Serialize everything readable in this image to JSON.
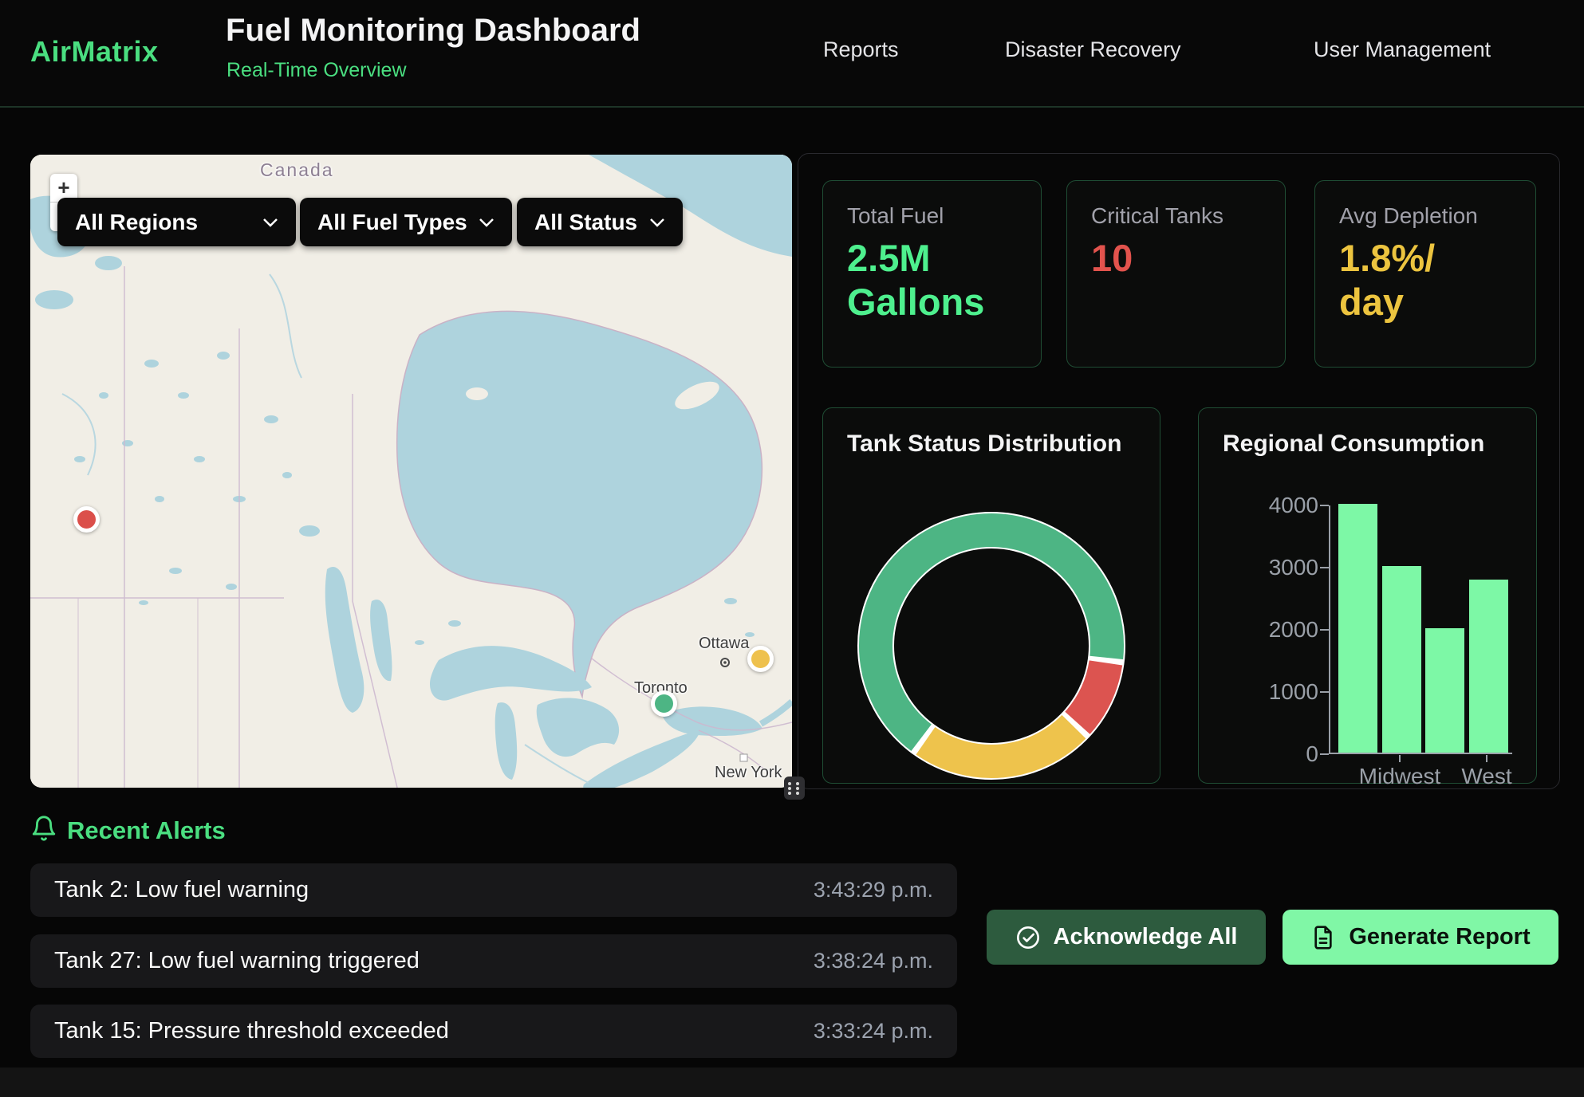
{
  "theme": {
    "accent_green": "#4ade80",
    "value_green": "#4ef08e",
    "alert_red": "#e2534d",
    "warn_yellow": "#ecc43f",
    "bar_green": "#7df8a6",
    "panel_border_green": "#1f4d34",
    "axis_gray": "#9aa0a8",
    "map_water": "#aed3dd",
    "map_land": "#f1eee6"
  },
  "header": {
    "brand": "AirMatrix",
    "title": "Fuel Monitoring Dashboard",
    "subtitle": "Real-Time Overview",
    "nav": [
      {
        "label": "Reports"
      },
      {
        "label": "Disaster Recovery"
      },
      {
        "label": "User Management"
      }
    ]
  },
  "map_panel": {
    "zoom_in": "+",
    "zoom_out": "−",
    "filters": [
      {
        "label": "All Regions"
      },
      {
        "label": "All Fuel Types"
      },
      {
        "label": "All Status"
      }
    ],
    "places": {
      "country": "Canada",
      "ottawa": "Ottawa",
      "toronto": "Toronto",
      "new_york": "New York"
    },
    "markers": [
      {
        "status": "critical",
        "color": "#db4f4a"
      },
      {
        "status": "warning",
        "color": "#eec14d"
      },
      {
        "status": "normal",
        "color": "#4db584"
      }
    ]
  },
  "stats": [
    {
      "label": "Total Fuel",
      "line1": "2.5M",
      "line2": "Gallons",
      "color": "#4ef08e"
    },
    {
      "label": "Critical Tanks",
      "line1": "10",
      "line2": "",
      "color": "#e2534d"
    },
    {
      "label": "Avg Depletion",
      "line1": "1.8%/",
      "line2": "day",
      "color": "#ecc43f"
    }
  ],
  "chart_data": [
    {
      "type": "donut",
      "title": "Tank Status Distribution",
      "start_angle_deg": 216,
      "direction": "clockwise",
      "segments": [
        {
          "name": "green",
          "value": 67,
          "color": "#4db584"
        },
        {
          "name": "red",
          "value": 10,
          "color": "#dc5450"
        },
        {
          "name": "yellow",
          "value": 23,
          "color": "#eec34c"
        }
      ],
      "separator_color": "#ffffff",
      "inner_radius_ratio": 0.74,
      "legend": false
    },
    {
      "type": "bar",
      "title": "Regional Consumption",
      "categories": [
        "",
        "Midwest",
        "",
        "West"
      ],
      "values": [
        4000,
        3000,
        2000,
        2780
      ],
      "ylim": [
        0,
        4000
      ],
      "yticks": [
        0,
        1000,
        2000,
        3000,
        4000
      ],
      "bar_color": "#7df8a6",
      "axis_color": "#9aa0a8",
      "grid": false,
      "legend": false
    }
  ],
  "alerts": {
    "heading": "Recent Alerts",
    "items": [
      {
        "message": "Tank 2: Low fuel warning",
        "time": "3:43:29 p.m."
      },
      {
        "message": "Tank 27: Low fuel warning triggered",
        "time": "3:38:24 p.m."
      },
      {
        "message": "Tank 15: Pressure threshold exceeded",
        "time": "3:33:24 p.m."
      }
    ]
  },
  "actions": {
    "acknowledge_all": "Acknowledge All",
    "generate_report": "Generate Report"
  }
}
